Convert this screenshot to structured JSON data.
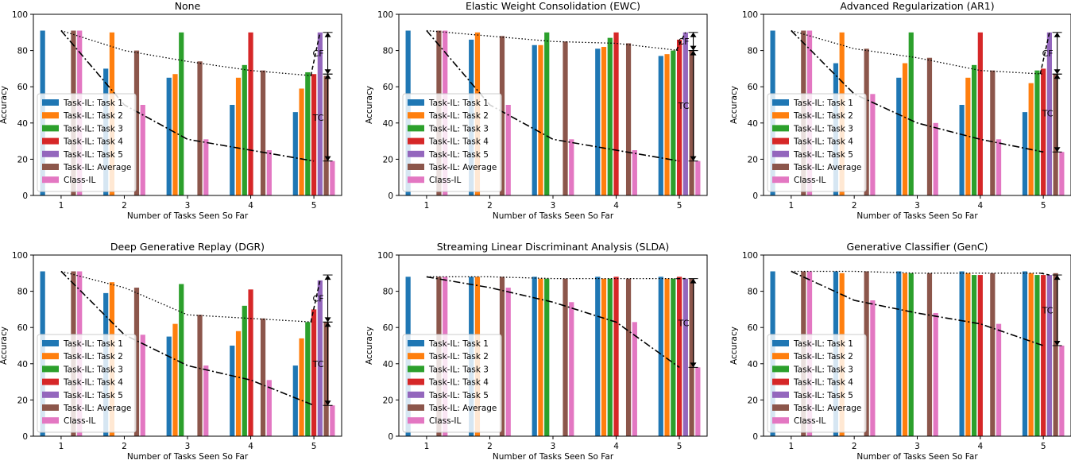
{
  "colors": {
    "task1": "#1f77b4",
    "task2": "#ff7f0e",
    "task3": "#2ca02c",
    "task4": "#d62728",
    "task5": "#9467bd",
    "average": "#8c564b",
    "class_il": "#e377c2"
  },
  "legend_labels": [
    "Task-IL: Task 1",
    "Task-IL: Task 2",
    "Task-IL: Task 3",
    "Task-IL: Task 4",
    "Task-IL: Task 5",
    "Task-IL: Average",
    "Class-IL"
  ],
  "axis_labels": {
    "xlabel": "Number of Tasks Seen So Far",
    "ylabel": "Accuracy"
  },
  "annotations": {
    "cf": "CF",
    "tc": "TC"
  },
  "chart_data": [
    {
      "type": "bar",
      "title": "None",
      "categories": [
        "1",
        "2",
        "3",
        "4",
        "5"
      ],
      "ylim": [
        0,
        100
      ],
      "yticks": [
        0,
        20,
        40,
        60,
        80,
        100
      ],
      "series": [
        {
          "name": "Task-IL: Task 1",
          "values": [
            91,
            70,
            65,
            50,
            46
          ]
        },
        {
          "name": "Task-IL: Task 2",
          "values": [
            null,
            90,
            67,
            65,
            59
          ]
        },
        {
          "name": "Task-IL: Task 3",
          "values": [
            null,
            null,
            90,
            72,
            68
          ]
        },
        {
          "name": "Task-IL: Task 4",
          "values": [
            null,
            null,
            null,
            90,
            67
          ]
        },
        {
          "name": "Task-IL: Task 5",
          "values": [
            null,
            null,
            null,
            null,
            90
          ]
        },
        {
          "name": "Task-IL: Average",
          "values": [
            91,
            80,
            74,
            69,
            66
          ]
        },
        {
          "name": "Class-IL",
          "values": [
            91,
            50,
            31,
            25,
            19
          ]
        }
      ],
      "annotations": {
        "cf": [
          90,
          67
        ],
        "tc": [
          67,
          19
        ]
      }
    },
    {
      "type": "bar",
      "title": "Elastic Weight Consolidation (EWC)",
      "categories": [
        "1",
        "2",
        "3",
        "4",
        "5"
      ],
      "ylim": [
        0,
        100
      ],
      "yticks": [
        0,
        20,
        40,
        60,
        80,
        100
      ],
      "series": [
        {
          "name": "Task-IL: Task 1",
          "values": [
            91,
            86,
            83,
            81,
            77
          ]
        },
        {
          "name": "Task-IL: Task 2",
          "values": [
            null,
            90,
            83,
            82,
            78
          ]
        },
        {
          "name": "Task-IL: Task 3",
          "values": [
            null,
            null,
            90,
            87,
            80
          ]
        },
        {
          "name": "Task-IL: Task 4",
          "values": [
            null,
            null,
            null,
            90,
            86
          ]
        },
        {
          "name": "Task-IL: Task 5",
          "values": [
            null,
            null,
            null,
            null,
            90
          ]
        },
        {
          "name": "Task-IL: Average",
          "values": [
            91,
            88,
            85,
            84,
            80
          ]
        },
        {
          "name": "Class-IL",
          "values": [
            91,
            50,
            31,
            25,
            19
          ]
        }
      ],
      "annotations": {
        "cf": [
          90,
          80
        ],
        "tc": [
          80,
          19
        ]
      }
    },
    {
      "type": "bar",
      "title": "Advanced Regularization (AR1)",
      "categories": [
        "1",
        "2",
        "3",
        "4",
        "5"
      ],
      "ylim": [
        0,
        100
      ],
      "yticks": [
        0,
        20,
        40,
        60,
        80,
        100
      ],
      "series": [
        {
          "name": "Task-IL: Task 1",
          "values": [
            91,
            73,
            65,
            50,
            46
          ]
        },
        {
          "name": "Task-IL: Task 2",
          "values": [
            null,
            90,
            73,
            65,
            62
          ]
        },
        {
          "name": "Task-IL: Task 3",
          "values": [
            null,
            null,
            90,
            72,
            69
          ]
        },
        {
          "name": "Task-IL: Task 4",
          "values": [
            null,
            null,
            null,
            90,
            70
          ]
        },
        {
          "name": "Task-IL: Task 5",
          "values": [
            null,
            null,
            null,
            null,
            90
          ]
        },
        {
          "name": "Task-IL: Average",
          "values": [
            91,
            81,
            76,
            69,
            67
          ]
        },
        {
          "name": "Class-IL",
          "values": [
            91,
            56,
            40,
            31,
            24
          ]
        }
      ],
      "annotations": {
        "cf": [
          90,
          67
        ],
        "tc": [
          67,
          24
        ]
      }
    },
    {
      "type": "bar",
      "title": "Deep Generative Replay (DGR)",
      "categories": [
        "1",
        "2",
        "3",
        "4",
        "5"
      ],
      "ylim": [
        0,
        100
      ],
      "yticks": [
        0,
        20,
        40,
        60,
        80,
        100
      ],
      "series": [
        {
          "name": "Task-IL: Task 1",
          "values": [
            91,
            79,
            55,
            50,
            39
          ]
        },
        {
          "name": "Task-IL: Task 2",
          "values": [
            null,
            85,
            62,
            58,
            54
          ]
        },
        {
          "name": "Task-IL: Task 3",
          "values": [
            null,
            null,
            84,
            72,
            63
          ]
        },
        {
          "name": "Task-IL: Task 4",
          "values": [
            null,
            null,
            null,
            81,
            70
          ]
        },
        {
          "name": "Task-IL: Task 5",
          "values": [
            null,
            null,
            null,
            null,
            86
          ]
        },
        {
          "name": "Task-IL: Average",
          "values": [
            91,
            82,
            67,
            65,
            63
          ]
        },
        {
          "name": "Class-IL",
          "values": [
            91,
            56,
            39,
            31,
            17
          ]
        }
      ],
      "annotations": {
        "cf": [
          89,
          63
        ],
        "tc": [
          63,
          17
        ]
      }
    },
    {
      "type": "bar",
      "title": "Streaming Linear Discriminant Analysis (SLDA)",
      "categories": [
        "1",
        "2",
        "3",
        "4",
        "5"
      ],
      "ylim": [
        0,
        100
      ],
      "yticks": [
        0,
        20,
        40,
        60,
        80,
        100
      ],
      "series": [
        {
          "name": "Task-IL: Task 1",
          "values": [
            88,
            88,
            88,
            88,
            88
          ]
        },
        {
          "name": "Task-IL: Task 2",
          "values": [
            null,
            88,
            87,
            87,
            87
          ]
        },
        {
          "name": "Task-IL: Task 3",
          "values": [
            null,
            null,
            87,
            87,
            87
          ]
        },
        {
          "name": "Task-IL: Task 4",
          "values": [
            null,
            null,
            null,
            88,
            88
          ]
        },
        {
          "name": "Task-IL: Task 5",
          "values": [
            null,
            null,
            null,
            null,
            87
          ]
        },
        {
          "name": "Task-IL: Average",
          "values": [
            88,
            88,
            87,
            87,
            87
          ]
        },
        {
          "name": "Class-IL",
          "values": [
            88,
            82,
            74,
            63,
            38
          ]
        }
      ],
      "annotations": {
        "cf": null,
        "tc": [
          87,
          38
        ]
      }
    },
    {
      "type": "bar",
      "title": "Generative Classifier (GenC)",
      "categories": [
        "1",
        "2",
        "3",
        "4",
        "5"
      ],
      "ylim": [
        0,
        100
      ],
      "yticks": [
        0,
        20,
        40,
        60,
        80,
        100
      ],
      "series": [
        {
          "name": "Task-IL: Task 1",
          "values": [
            91,
            91,
            91,
            91,
            91
          ]
        },
        {
          "name": "Task-IL: Task 2",
          "values": [
            null,
            90,
            90,
            90,
            90
          ]
        },
        {
          "name": "Task-IL: Task 3",
          "values": [
            null,
            null,
            90,
            89,
            89
          ]
        },
        {
          "name": "Task-IL: Task 4",
          "values": [
            null,
            null,
            null,
            89,
            89
          ]
        },
        {
          "name": "Task-IL: Task 5",
          "values": [
            null,
            null,
            null,
            null,
            89
          ]
        },
        {
          "name": "Task-IL: Average",
          "values": [
            91,
            91,
            90,
            90,
            90
          ]
        },
        {
          "name": "Class-IL",
          "values": [
            91,
            75,
            68,
            62,
            50
          ]
        }
      ],
      "annotations": {
        "cf": null,
        "tc": [
          89,
          50
        ]
      }
    }
  ]
}
